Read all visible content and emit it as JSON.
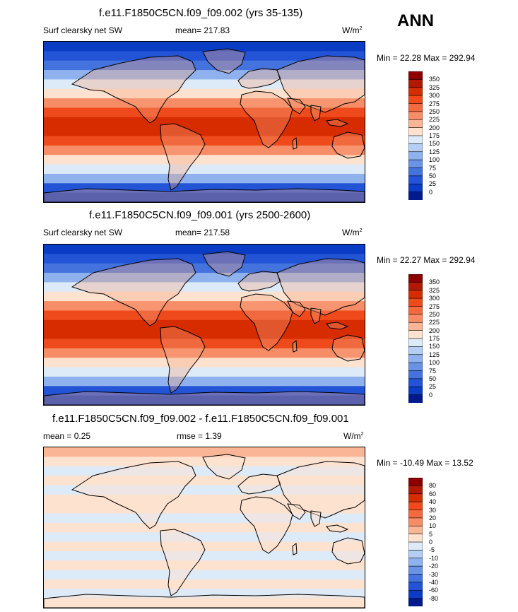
{
  "season": "ANN",
  "panels": [
    {
      "title": "f.e11.F1850C5CN.f09_f09.002 (yrs 35-135)",
      "field": "Surf clearsky net SW",
      "mean_text": "mean= 217.83",
      "units": "W/m",
      "units_sup": "2",
      "minmax": "Min =  22.28 Max = 292.94",
      "levels": [
        "350",
        "325",
        "300",
        "275",
        "250",
        "225",
        "200",
        "175",
        "150",
        "125",
        "100",
        "75",
        "50",
        "25",
        "0"
      ],
      "colors": [
        "#8c0000",
        "#b01a00",
        "#d72b00",
        "#ee4a1c",
        "#f36a40",
        "#f68d66",
        "#f9b596",
        "#fde2cf",
        "#ddeaf8",
        "#b5cff4",
        "#8fb2ee",
        "#6a93e6",
        "#4573de",
        "#2354d6",
        "#0a3cc4",
        "#001a8c"
      ]
    },
    {
      "title": "f.e11.F1850C5CN.f09_f09.001 (yrs 2500-2600)",
      "field": "Surf clearsky net SW",
      "mean_text": "mean= 217.58",
      "units": "W/m",
      "units_sup": "2",
      "minmax": "Min =  22.27 Max = 292.94",
      "levels": [
        "350",
        "325",
        "300",
        "275",
        "250",
        "225",
        "200",
        "175",
        "150",
        "125",
        "100",
        "75",
        "50",
        "25",
        "0"
      ],
      "colors": [
        "#8c0000",
        "#b01a00",
        "#d72b00",
        "#ee4a1c",
        "#f36a40",
        "#f68d66",
        "#f9b596",
        "#fde2cf",
        "#ddeaf8",
        "#b5cff4",
        "#8fb2ee",
        "#6a93e6",
        "#4573de",
        "#2354d6",
        "#0a3cc4",
        "#001a8c"
      ]
    },
    {
      "title": "f.e11.F1850C5CN.f09_f09.002 - f.e11.F1850C5CN.f09_f09.001",
      "mean_text": "mean =   0.25",
      "rmse_text": "rmse =   1.39",
      "units": "W/m",
      "units_sup": "2",
      "minmax": "Min = -10.49 Max =  13.52",
      "levels": [
        "80",
        "60",
        "40",
        "30",
        "20",
        "10",
        "5",
        "0",
        "-5",
        "-10",
        "-20",
        "-30",
        "-40",
        "-60",
        "-80"
      ],
      "colors": [
        "#8c0000",
        "#b01a00",
        "#d72b00",
        "#ee4a1c",
        "#f36a40",
        "#f68d66",
        "#f9b596",
        "#fde2cf",
        "#ddeaf8",
        "#b5cff4",
        "#8fb2ee",
        "#6a93e6",
        "#4573de",
        "#2354d6",
        "#0a3cc4",
        "#001a8c"
      ]
    }
  ],
  "map_fill": {
    "full_bands": [
      "#0a3cc4",
      "#2354d6",
      "#4573de",
      "#8fb2ee",
      "#ddeaf8",
      "#fde2cf",
      "#f68d66",
      "#ee4a1c",
      "#d72b00",
      "#d72b00",
      "#ee4a1c",
      "#f68d66",
      "#fde2cf",
      "#ddeaf8",
      "#8fb2ee",
      "#2354d6",
      "#0a3cc4"
    ],
    "diff_bands": [
      "#f9b596",
      "#fde2cf",
      "#ddeaf8",
      "#fde2cf",
      "#ddeaf8",
      "#fde2cf",
      "#fde2cf",
      "#ddeaf8",
      "#fde2cf",
      "#ddeaf8",
      "#fde2cf",
      "#ddeaf8",
      "#fde2cf",
      "#ddeaf8",
      "#fde2cf",
      "#ddeaf8",
      "#fde2cf"
    ],
    "land": "#f6a781",
    "land_diff": "#fde2cf",
    "coast": "#000000"
  }
}
